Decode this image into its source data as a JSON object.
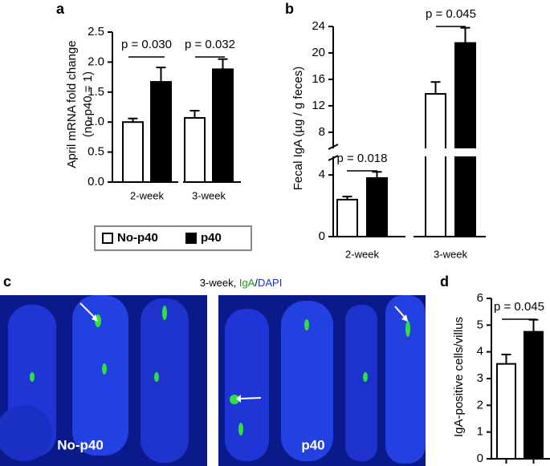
{
  "chart_data": [
    {
      "type": "bar",
      "panel_label": "a",
      "ylabel": [
        "April mRNA fold change",
        "(no-p40 = 1)"
      ],
      "categories": [
        "2-week",
        "3-week"
      ],
      "series": [
        {
          "name": "No-p40",
          "color": "#ffffff",
          "values": [
            1.0,
            1.07
          ],
          "errors": [
            0.06,
            0.12
          ]
        },
        {
          "name": "p40",
          "color": "#000000",
          "values": [
            1.67,
            1.88
          ],
          "errors": [
            0.24,
            0.17
          ]
        }
      ],
      "annotations": [
        "p = 0.030",
        "p = 0.032"
      ],
      "ylim": [
        0,
        2.5
      ],
      "yticks": [
        {
          "value": 0,
          "label": "0.0"
        },
        0.5,
        {
          "value": 1,
          "label": "1.0"
        },
        1.5,
        {
          "value": 2,
          "label": "2.0"
        },
        2.5
      ],
      "legend": "below"
    },
    {
      "type": "bar",
      "panel_label": "b",
      "ylabel": [
        "Fecal IgA (µg / g feces)"
      ],
      "categories": [
        "2-week",
        "3-week"
      ],
      "series": [
        {
          "color": "#ffffff",
          "values": [
            2.4,
            13.8
          ],
          "errors": [
            0.2,
            1.8
          ]
        },
        {
          "color": "#000000",
          "values": [
            3.8,
            21.5
          ],
          "errors": [
            0.4,
            2.3
          ]
        }
      ],
      "annotations": [
        "p = 0.018",
        "p = 0.045"
      ],
      "ylim": [
        0,
        24
      ],
      "ybreak": [
        5.1,
        5.8
      ],
      "yticks": [
        0,
        4,
        8,
        12,
        16,
        20,
        24
      ]
    },
    {
      "type": "bar",
      "panel_label": "d",
      "ylabel": [
        "IgA-positive cells/villus"
      ],
      "categories": [
        null
      ],
      "series": [
        {
          "color": "#ffffff",
          "values": [
            3.55
          ],
          "errors": [
            0.35
          ]
        },
        {
          "color": "#000000",
          "values": [
            4.75
          ],
          "errors": [
            0.45
          ]
        }
      ],
      "annotations": [
        "p = 0.045"
      ],
      "ylim": [
        0,
        6
      ],
      "yticks": [
        0,
        1,
        2,
        3,
        4,
        5,
        6
      ]
    }
  ],
  "panel_c": {
    "label": "c",
    "title_parts": [
      "3-week, ",
      "IgA",
      "/",
      "DAPI"
    ],
    "image_labels": [
      "No-p40",
      "p40"
    ]
  }
}
